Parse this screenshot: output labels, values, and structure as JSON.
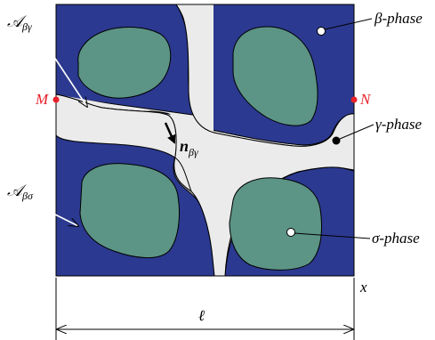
{
  "labels": {
    "beta_phase": "β-phase",
    "gamma_phase": "γ-phase",
    "sigma_phase": "σ-phase",
    "point_m": "M",
    "point_n": "N",
    "a_beta_gamma_main": "𝒜",
    "a_beta_gamma_sub": "βγ",
    "a_beta_sigma_main": "𝒜",
    "a_beta_sigma_sub": "βσ",
    "normal_main": "n",
    "normal_sub": "βγ",
    "x_axis": "x",
    "length": "ℓ"
  },
  "colors": {
    "beta": "#2b3990",
    "gamma": "#ebebeb",
    "sigma": "#5c9485",
    "marker": "#e8202a"
  }
}
